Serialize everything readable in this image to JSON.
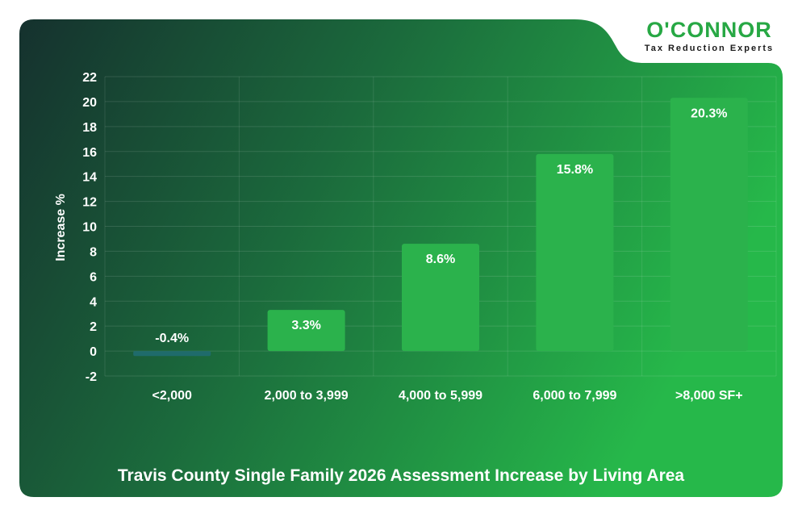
{
  "brand": {
    "name": "O'CONNOR",
    "tagline": "Tax Reduction Experts"
  },
  "colors": {
    "accent": "#2bb24c",
    "bar": "#2bb24c",
    "negative_bar": "#1f6b6b",
    "grid": "#ffffff",
    "bg_dark": "#15312e",
    "bg_light": "#26b84a"
  },
  "chart_data": {
    "type": "bar",
    "title": "Travis County Single Family 2026 Assessment Increase by Living Area",
    "xlabel": "",
    "ylabel": "Increase %",
    "ylim": [
      -2,
      22
    ],
    "yticks": [
      22,
      20,
      18,
      16,
      14,
      12,
      10,
      8,
      6,
      4,
      2,
      0,
      -2
    ],
    "grid": true,
    "categories": [
      "<2,000",
      "2,000 to 3,999",
      "4,000 to 5,999",
      "6,000 to 7,999",
      ">8,000 SF+"
    ],
    "values": [
      -0.4,
      3.3,
      8.6,
      15.8,
      20.3
    ],
    "data_labels": [
      "-0.4%",
      "3.3%",
      "8.6%",
      "15.8%",
      "20.3%"
    ]
  }
}
